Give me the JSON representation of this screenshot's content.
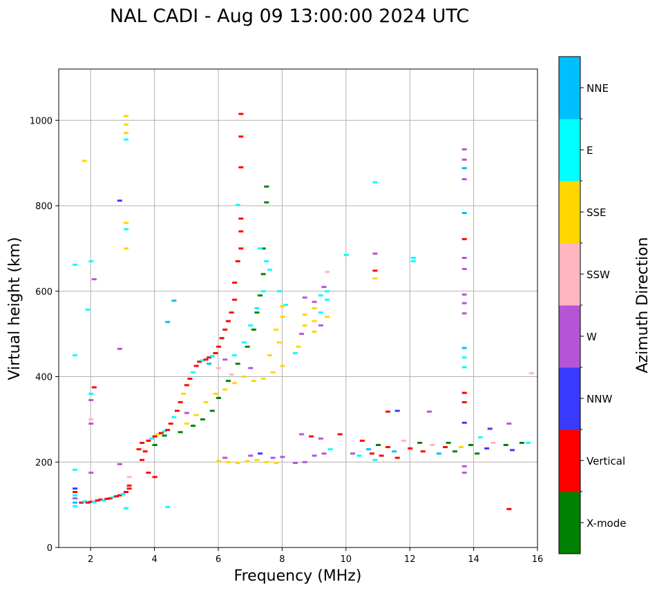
{
  "chart_data": {
    "type": "scatter",
    "title": "NAL CADI - Aug 09 13:00:00 2024 UTC",
    "xlabel": "Frequency (MHz)",
    "ylabel": "Virtual height (km)",
    "xlim": [
      1,
      16
    ],
    "ylim": [
      0,
      1120
    ],
    "xticks": [
      2,
      4,
      6,
      8,
      10,
      12,
      14,
      16
    ],
    "yticks": [
      0,
      200,
      400,
      600,
      800,
      1000
    ],
    "grid": true,
    "colorbar": {
      "label": "Azimuth Direction",
      "position": "right",
      "categories": [
        "X-mode",
        "Vertical",
        "NNW",
        "W",
        "SSW",
        "SSE",
        "E",
        "NNE"
      ],
      "colors": [
        "#008000",
        "#ff0000",
        "#3a3aff",
        "#b455d6",
        "#ffb6c1",
        "#ffd700",
        "#00ffff",
        "#00bfff"
      ]
    },
    "echoes": [
      {
        "f": 1.5,
        "h": 97,
        "c": "E"
      },
      {
        "f": 1.5,
        "h": 105,
        "c": "NNE"
      },
      {
        "f": 1.5,
        "h": 115,
        "c": "W"
      },
      {
        "f": 1.5,
        "h": 122,
        "c": "E"
      },
      {
        "f": 1.5,
        "h": 130,
        "c": "Vertical"
      },
      {
        "f": 1.5,
        "h": 138,
        "c": "NNW"
      },
      {
        "f": 1.5,
        "h": 182,
        "c": "E"
      },
      {
        "f": 1.5,
        "h": 450,
        "c": "E"
      },
      {
        "f": 1.5,
        "h": 662,
        "c": "E"
      },
      {
        "f": 1.7,
        "h": 105,
        "c": "Vertical"
      },
      {
        "f": 1.8,
        "h": 108,
        "c": "E"
      },
      {
        "f": 1.9,
        "h": 105,
        "c": "Vertical"
      },
      {
        "f": 2.0,
        "h": 107,
        "c": "Vertical"
      },
      {
        "f": 2.1,
        "h": 106,
        "c": "E"
      },
      {
        "f": 2.2,
        "h": 110,
        "c": "Vertical"
      },
      {
        "f": 2.3,
        "h": 112,
        "c": "Vertical"
      },
      {
        "f": 2.4,
        "h": 110,
        "c": "E"
      },
      {
        "f": 2.5,
        "h": 114,
        "c": "Vertical"
      },
      {
        "f": 2.6,
        "h": 115,
        "c": "Vertical"
      },
      {
        "f": 2.7,
        "h": 118,
        "c": "E"
      },
      {
        "f": 2.8,
        "h": 120,
        "c": "Vertical"
      },
      {
        "f": 2.9,
        "h": 122,
        "c": "Vertical"
      },
      {
        "f": 3.0,
        "h": 125,
        "c": "E"
      },
      {
        "f": 3.1,
        "h": 130,
        "c": "Vertical"
      },
      {
        "f": 3.2,
        "h": 138,
        "c": "Vertical"
      },
      {
        "f": 3.2,
        "h": 145,
        "c": "Vertical"
      },
      {
        "f": 3.1,
        "h": 92,
        "c": "E"
      },
      {
        "f": 2.0,
        "h": 175,
        "c": "W"
      },
      {
        "f": 2.0,
        "h": 290,
        "c": "W"
      },
      {
        "f": 2.0,
        "h": 300,
        "c": "SSW"
      },
      {
        "f": 2.0,
        "h": 345,
        "c": "W"
      },
      {
        "f": 2.0,
        "h": 360,
        "c": "E"
      },
      {
        "f": 2.1,
        "h": 375,
        "c": "Vertical"
      },
      {
        "f": 1.8,
        "h": 905,
        "c": "SSE"
      },
      {
        "f": 1.9,
        "h": 557,
        "c": "E"
      },
      {
        "f": 2.0,
        "h": 670,
        "c": "E"
      },
      {
        "f": 2.1,
        "h": 628,
        "c": "W"
      },
      {
        "f": 2.9,
        "h": 465,
        "c": "W"
      },
      {
        "f": 2.9,
        "h": 812,
        "c": "NNW"
      },
      {
        "f": 3.1,
        "h": 1010,
        "c": "SSE"
      },
      {
        "f": 3.1,
        "h": 990,
        "c": "SSE"
      },
      {
        "f": 3.1,
        "h": 970,
        "c": "SSE"
      },
      {
        "f": 3.1,
        "h": 955,
        "c": "E"
      },
      {
        "f": 3.1,
        "h": 760,
        "c": "SSE"
      },
      {
        "f": 3.1,
        "h": 745,
        "c": "E"
      },
      {
        "f": 3.1,
        "h": 700,
        "c": "SSE"
      },
      {
        "f": 2.9,
        "h": 195,
        "c": "W"
      },
      {
        "f": 3.2,
        "h": 165,
        "c": "SSW"
      },
      {
        "f": 3.5,
        "h": 230,
        "c": "Vertical"
      },
      {
        "f": 3.6,
        "h": 245,
        "c": "Vertical"
      },
      {
        "f": 3.7,
        "h": 225,
        "c": "Vertical"
      },
      {
        "f": 3.8,
        "h": 250,
        "c": "Vertical"
      },
      {
        "f": 3.9,
        "h": 255,
        "c": "E"
      },
      {
        "f": 4.0,
        "h": 260,
        "c": "Vertical"
      },
      {
        "f": 4.1,
        "h": 265,
        "c": "SSE"
      },
      {
        "f": 4.2,
        "h": 268,
        "c": "Vertical"
      },
      {
        "f": 4.3,
        "h": 272,
        "c": "E"
      },
      {
        "f": 4.4,
        "h": 275,
        "c": "Vertical"
      },
      {
        "f": 4.5,
        "h": 290,
        "c": "Vertical"
      },
      {
        "f": 4.6,
        "h": 305,
        "c": "E"
      },
      {
        "f": 4.7,
        "h": 320,
        "c": "Vertical"
      },
      {
        "f": 4.8,
        "h": 340,
        "c": "Vertical"
      },
      {
        "f": 4.9,
        "h": 360,
        "c": "SSE"
      },
      {
        "f": 5.0,
        "h": 380,
        "c": "Vertical"
      },
      {
        "f": 5.1,
        "h": 395,
        "c": "Vertical"
      },
      {
        "f": 5.2,
        "h": 410,
        "c": "E"
      },
      {
        "f": 5.3,
        "h": 425,
        "c": "Vertical"
      },
      {
        "f": 5.4,
        "h": 435,
        "c": "Vertical"
      },
      {
        "f": 5.5,
        "h": 438,
        "c": "E"
      },
      {
        "f": 5.6,
        "h": 440,
        "c": "Vertical"
      },
      {
        "f": 5.7,
        "h": 445,
        "c": "Vertical"
      },
      {
        "f": 5.8,
        "h": 448,
        "c": "E"
      },
      {
        "f": 5.9,
        "h": 455,
        "c": "Vertical"
      },
      {
        "f": 6.0,
        "h": 470,
        "c": "Vertical"
      },
      {
        "f": 6.1,
        "h": 490,
        "c": "Vertical"
      },
      {
        "f": 6.2,
        "h": 510,
        "c": "Vertical"
      },
      {
        "f": 6.3,
        "h": 530,
        "c": "Vertical"
      },
      {
        "f": 6.4,
        "h": 550,
        "c": "Vertical"
      },
      {
        "f": 6.5,
        "h": 580,
        "c": "Vertical"
      },
      {
        "f": 6.5,
        "h": 620,
        "c": "Vertical"
      },
      {
        "f": 6.6,
        "h": 670,
        "c": "Vertical"
      },
      {
        "f": 6.7,
        "h": 700,
        "c": "Vertical"
      },
      {
        "f": 6.7,
        "h": 740,
        "c": "Vertical"
      },
      {
        "f": 6.7,
        "h": 770,
        "c": "Vertical"
      },
      {
        "f": 6.7,
        "h": 890,
        "c": "Vertical"
      },
      {
        "f": 6.7,
        "h": 962,
        "c": "Vertical"
      },
      {
        "f": 6.7,
        "h": 1015,
        "c": "Vertical"
      },
      {
        "f": 4.0,
        "h": 240,
        "c": "X-mode"
      },
      {
        "f": 4.3,
        "h": 262,
        "c": "X-mode"
      },
      {
        "f": 4.8,
        "h": 270,
        "c": "X-mode"
      },
      {
        "f": 5.2,
        "h": 285,
        "c": "X-mode"
      },
      {
        "f": 5.5,
        "h": 300,
        "c": "X-mode"
      },
      {
        "f": 5.8,
        "h": 320,
        "c": "X-mode"
      },
      {
        "f": 6.0,
        "h": 350,
        "c": "X-mode"
      },
      {
        "f": 6.3,
        "h": 390,
        "c": "X-mode"
      },
      {
        "f": 6.6,
        "h": 430,
        "c": "X-mode"
      },
      {
        "f": 6.9,
        "h": 470,
        "c": "X-mode"
      },
      {
        "f": 7.1,
        "h": 510,
        "c": "X-mode"
      },
      {
        "f": 7.2,
        "h": 550,
        "c": "X-mode"
      },
      {
        "f": 7.3,
        "h": 590,
        "c": "X-mode"
      },
      {
        "f": 7.4,
        "h": 640,
        "c": "X-mode"
      },
      {
        "f": 7.4,
        "h": 700,
        "c": "X-mode"
      },
      {
        "f": 7.5,
        "h": 808,
        "c": "X-mode"
      },
      {
        "f": 7.5,
        "h": 845,
        "c": "X-mode"
      },
      {
        "f": 5.0,
        "h": 290,
        "c": "SSE"
      },
      {
        "f": 5.3,
        "h": 310,
        "c": "SSE"
      },
      {
        "f": 5.6,
        "h": 340,
        "c": "SSE"
      },
      {
        "f": 5.9,
        "h": 360,
        "c": "SSE"
      },
      {
        "f": 6.2,
        "h": 370,
        "c": "SSE"
      },
      {
        "f": 6.5,
        "h": 385,
        "c": "SSE"
      },
      {
        "f": 6.8,
        "h": 400,
        "c": "SSE"
      },
      {
        "f": 7.1,
        "h": 390,
        "c": "SSE"
      },
      {
        "f": 7.4,
        "h": 395,
        "c": "SSE"
      },
      {
        "f": 7.7,
        "h": 410,
        "c": "SSE"
      },
      {
        "f": 8.0,
        "h": 425,
        "c": "SSE"
      },
      {
        "f": 7.6,
        "h": 450,
        "c": "SSE"
      },
      {
        "f": 7.9,
        "h": 480,
        "c": "SSE"
      },
      {
        "f": 7.8,
        "h": 510,
        "c": "SSE"
      },
      {
        "f": 8.0,
        "h": 540,
        "c": "SSE"
      },
      {
        "f": 6.5,
        "h": 450,
        "c": "E"
      },
      {
        "f": 6.8,
        "h": 480,
        "c": "E"
      },
      {
        "f": 7.0,
        "h": 520,
        "c": "E"
      },
      {
        "f": 7.2,
        "h": 560,
        "c": "E"
      },
      {
        "f": 7.4,
        "h": 600,
        "c": "E"
      },
      {
        "f": 7.6,
        "h": 650,
        "c": "E"
      },
      {
        "f": 7.5,
        "h": 670,
        "c": "E"
      },
      {
        "f": 7.3,
        "h": 700,
        "c": "E"
      },
      {
        "f": 7.9,
        "h": 600,
        "c": "E"
      },
      {
        "f": 6.6,
        "h": 802,
        "c": "E"
      },
      {
        "f": 6.0,
        "h": 420,
        "c": "SSW"
      },
      {
        "f": 6.4,
        "h": 405,
        "c": "SSW"
      },
      {
        "f": 6.2,
        "h": 440,
        "c": "W"
      },
      {
        "f": 7.0,
        "h": 420,
        "c": "W"
      },
      {
        "f": 5.0,
        "h": 315,
        "c": "W"
      },
      {
        "f": 8.4,
        "h": 455,
        "c": "E"
      },
      {
        "f": 8.5,
        "h": 470,
        "c": "SSE"
      },
      {
        "f": 8.6,
        "h": 500,
        "c": "W"
      },
      {
        "f": 8.7,
        "h": 520,
        "c": "SSE"
      },
      {
        "f": 8.7,
        "h": 545,
        "c": "SSE"
      },
      {
        "f": 8.7,
        "h": 585,
        "c": "W"
      },
      {
        "f": 9.0,
        "h": 505,
        "c": "SSE"
      },
      {
        "f": 9.0,
        "h": 530,
        "c": "SSE"
      },
      {
        "f": 9.0,
        "h": 560,
        "c": "SSE"
      },
      {
        "f": 9.0,
        "h": 575,
        "c": "W"
      },
      {
        "f": 9.2,
        "h": 520,
        "c": "W"
      },
      {
        "f": 9.2,
        "h": 550,
        "c": "E"
      },
      {
        "f": 9.2,
        "h": 590,
        "c": "E"
      },
      {
        "f": 9.3,
        "h": 610,
        "c": "W"
      },
      {
        "f": 9.4,
        "h": 540,
        "c": "SSE"
      },
      {
        "f": 9.4,
        "h": 580,
        "c": "E"
      },
      {
        "f": 9.4,
        "h": 600,
        "c": "E"
      },
      {
        "f": 9.4,
        "h": 645,
        "c": "SSW"
      },
      {
        "f": 6.0,
        "h": 202,
        "c": "SSE"
      },
      {
        "f": 6.3,
        "h": 200,
        "c": "SSE"
      },
      {
        "f": 6.6,
        "h": 198,
        "c": "SSE"
      },
      {
        "f": 6.9,
        "h": 202,
        "c": "SSE"
      },
      {
        "f": 7.2,
        "h": 205,
        "c": "SSE"
      },
      {
        "f": 7.5,
        "h": 200,
        "c": "SSE"
      },
      {
        "f": 7.8,
        "h": 198,
        "c": "SSE"
      },
      {
        "f": 7.0,
        "h": 215,
        "c": "W"
      },
      {
        "f": 7.3,
        "h": 220,
        "c": "NNW"
      },
      {
        "f": 7.7,
        "h": 210,
        "c": "W"
      },
      {
        "f": 8.0,
        "h": 212,
        "c": "W"
      },
      {
        "f": 6.2,
        "h": 210,
        "c": "W"
      },
      {
        "f": 8.4,
        "h": 198,
        "c": "W"
      },
      {
        "f": 8.7,
        "h": 200,
        "c": "W"
      },
      {
        "f": 9.0,
        "h": 215,
        "c": "W"
      },
      {
        "f": 9.3,
        "h": 220,
        "c": "W"
      },
      {
        "f": 8.6,
        "h": 265,
        "c": "W"
      },
      {
        "f": 8.9,
        "h": 260,
        "c": "Vertical"
      },
      {
        "f": 9.2,
        "h": 255,
        "c": "W"
      },
      {
        "f": 9.5,
        "h": 230,
        "c": "E"
      },
      {
        "f": 9.8,
        "h": 265,
        "c": "Vertical"
      },
      {
        "f": 10.2,
        "h": 220,
        "c": "W"
      },
      {
        "f": 10.4,
        "h": 215,
        "c": "E"
      },
      {
        "f": 10.5,
        "h": 250,
        "c": "Vertical"
      },
      {
        "f": 10.7,
        "h": 230,
        "c": "NNE"
      },
      {
        "f": 10.8,
        "h": 220,
        "c": "Vertical"
      },
      {
        "f": 10.9,
        "h": 205,
        "c": "E"
      },
      {
        "f": 11.0,
        "h": 240,
        "c": "X-mode"
      },
      {
        "f": 11.1,
        "h": 215,
        "c": "Vertical"
      },
      {
        "f": 11.3,
        "h": 235,
        "c": "Vertical"
      },
      {
        "f": 11.5,
        "h": 225,
        "c": "NNE"
      },
      {
        "f": 11.6,
        "h": 210,
        "c": "Vertical"
      },
      {
        "f": 11.8,
        "h": 250,
        "c": "SSW"
      },
      {
        "f": 12.0,
        "h": 232,
        "c": "Vertical"
      },
      {
        "f": 12.3,
        "h": 245,
        "c": "X-mode"
      },
      {
        "f": 12.4,
        "h": 225,
        "c": "Vertical"
      },
      {
        "f": 12.7,
        "h": 240,
        "c": "SSW"
      },
      {
        "f": 12.9,
        "h": 220,
        "c": "NNE"
      },
      {
        "f": 13.1,
        "h": 235,
        "c": "Vertical"
      },
      {
        "f": 13.2,
        "h": 245,
        "c": "X-mode"
      },
      {
        "f": 13.4,
        "h": 225,
        "c": "X-mode"
      },
      {
        "f": 13.6,
        "h": 235,
        "c": "SSE"
      },
      {
        "f": 13.9,
        "h": 240,
        "c": "X-mode"
      },
      {
        "f": 14.1,
        "h": 220,
        "c": "X-mode"
      },
      {
        "f": 14.4,
        "h": 232,
        "c": "NNW"
      },
      {
        "f": 14.6,
        "h": 245,
        "c": "SSW"
      },
      {
        "f": 15.0,
        "h": 240,
        "c": "X-mode"
      },
      {
        "f": 15.2,
        "h": 228,
        "c": "NNW"
      },
      {
        "f": 15.5,
        "h": 245,
        "c": "X-mode"
      },
      {
        "f": 15.7,
        "h": 245,
        "c": "E"
      },
      {
        "f": 14.2,
        "h": 258,
        "c": "E"
      },
      {
        "f": 11.3,
        "h": 318,
        "c": "Vertical"
      },
      {
        "f": 11.6,
        "h": 320,
        "c": "NNW"
      },
      {
        "f": 12.6,
        "h": 318,
        "c": "W"
      },
      {
        "f": 14.5,
        "h": 278,
        "c": "NNW"
      },
      {
        "f": 15.1,
        "h": 290,
        "c": "W"
      },
      {
        "f": 15.1,
        "h": 90,
        "c": "Vertical"
      },
      {
        "f": 15.8,
        "h": 408,
        "c": "SSW"
      },
      {
        "f": 13.7,
        "h": 175,
        "c": "W"
      },
      {
        "f": 13.7,
        "h": 190,
        "c": "W"
      },
      {
        "f": 13.7,
        "h": 292,
        "c": "NNW"
      },
      {
        "f": 13.7,
        "h": 340,
        "c": "Vertical"
      },
      {
        "f": 13.7,
        "h": 362,
        "c": "Vertical"
      },
      {
        "f": 13.7,
        "h": 422,
        "c": "E"
      },
      {
        "f": 13.7,
        "h": 445,
        "c": "E"
      },
      {
        "f": 13.7,
        "h": 467,
        "c": "NNE"
      },
      {
        "f": 13.7,
        "h": 548,
        "c": "W"
      },
      {
        "f": 13.7,
        "h": 572,
        "c": "W"
      },
      {
        "f": 13.7,
        "h": 592,
        "c": "W"
      },
      {
        "f": 13.7,
        "h": 652,
        "c": "W"
      },
      {
        "f": 13.7,
        "h": 678,
        "c": "W"
      },
      {
        "f": 13.7,
        "h": 722,
        "c": "Vertical"
      },
      {
        "f": 13.7,
        "h": 783,
        "c": "NNE"
      },
      {
        "f": 13.7,
        "h": 862,
        "c": "W"
      },
      {
        "f": 13.7,
        "h": 888,
        "c": "NNE"
      },
      {
        "f": 13.7,
        "h": 908,
        "c": "W"
      },
      {
        "f": 13.7,
        "h": 932,
        "c": "W"
      },
      {
        "f": 10.0,
        "h": 685,
        "c": "E"
      },
      {
        "f": 10.9,
        "h": 630,
        "c": "SSE"
      },
      {
        "f": 10.9,
        "h": 648,
        "c": "Vertical"
      },
      {
        "f": 10.9,
        "h": 688,
        "c": "W"
      },
      {
        "f": 10.9,
        "h": 855,
        "c": "E"
      },
      {
        "f": 12.1,
        "h": 670,
        "c": "E"
      },
      {
        "f": 12.1,
        "h": 678,
        "c": "E"
      },
      {
        "f": 4.6,
        "h": 578,
        "c": "NNE"
      },
      {
        "f": 4.4,
        "h": 528,
        "c": "NNE"
      },
      {
        "f": 4.4,
        "h": 95,
        "c": "E"
      },
      {
        "f": 3.8,
        "h": 175,
        "c": "Vertical"
      },
      {
        "f": 4.0,
        "h": 165,
        "c": "Vertical"
      },
      {
        "f": 3.6,
        "h": 205,
        "c": "Vertical"
      },
      {
        "f": 8.1,
        "h": 568,
        "c": "E"
      },
      {
        "f": 8.0,
        "h": 565,
        "c": "SSE"
      },
      {
        "f": 5.7,
        "h": 430,
        "c": "NNE"
      }
    ]
  }
}
